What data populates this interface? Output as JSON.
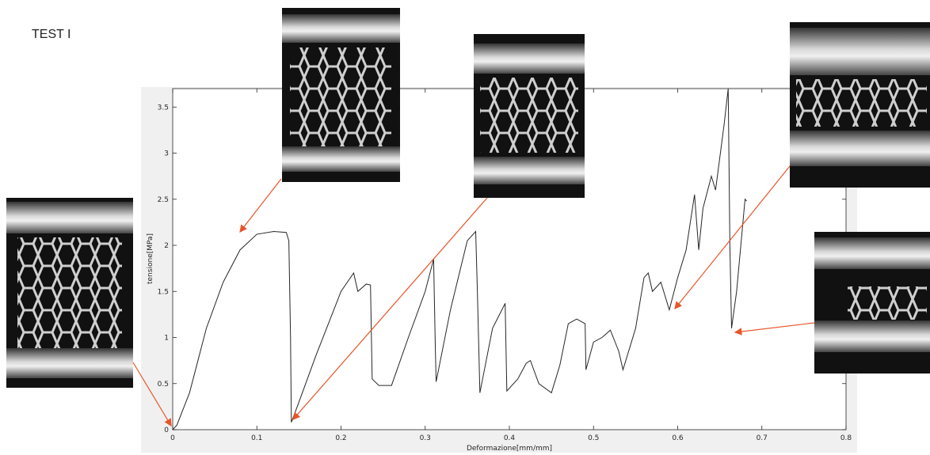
{
  "chart_data": {
    "type": "line",
    "title": "TEST I",
    "x_label": "Deformazione[mm/mm]",
    "y_label": "tensione[MPa]",
    "x": [
      0,
      0.005,
      0.02,
      0.04,
      0.06,
      0.08,
      0.1,
      0.12,
      0.135,
      0.138,
      0.14,
      0.141,
      0.15,
      0.17,
      0.2,
      0.215,
      0.22,
      0.23,
      0.235,
      0.237,
      0.245,
      0.26,
      0.28,
      0.3,
      0.31,
      0.312,
      0.313,
      0.33,
      0.35,
      0.36,
      0.362,
      0.365,
      0.38,
      0.395,
      0.397,
      0.41,
      0.42,
      0.425,
      0.435,
      0.45,
      0.46,
      0.47,
      0.48,
      0.49,
      0.491,
      0.5,
      0.51,
      0.52,
      0.53,
      0.535,
      0.55,
      0.56,
      0.565,
      0.57,
      0.58,
      0.59,
      0.6,
      0.61,
      0.62,
      0.625,
      0.63,
      0.64,
      0.645,
      0.655,
      0.66,
      0.662,
      0.664,
      0.67,
      0.68,
      0.682
    ],
    "values": [
      0,
      0.05,
      0.4,
      1.1,
      1.6,
      1.95,
      2.12,
      2.15,
      2.14,
      2.05,
      1.0,
      0.08,
      0.3,
      0.8,
      1.5,
      1.7,
      1.5,
      1.58,
      1.57,
      0.55,
      0.48,
      0.48,
      1.0,
      1.5,
      1.85,
      0.9,
      0.52,
      1.3,
      2.05,
      2.15,
      1.5,
      0.4,
      1.1,
      1.37,
      0.42,
      0.55,
      0.72,
      0.75,
      0.5,
      0.4,
      0.7,
      1.15,
      1.2,
      1.15,
      0.65,
      0.95,
      1.0,
      1.08,
      0.85,
      0.65,
      1.1,
      1.65,
      1.7,
      1.5,
      1.6,
      1.3,
      1.65,
      1.95,
      2.55,
      1.95,
      2.4,
      2.75,
      2.6,
      3.3,
      3.7,
      2.0,
      1.1,
      1.5,
      2.5,
      2.48
    ],
    "color": "#262626",
    "xlim": [
      0,
      0.8
    ],
    "xticks": [
      0,
      0.1,
      0.2,
      0.3,
      0.4,
      0.5,
      0.6,
      0.7,
      0.8
    ],
    "ylim": [
      0,
      3.7
    ],
    "yticks": [
      0,
      0.5,
      1,
      1.5,
      2,
      2.5,
      3,
      3.5
    ]
  }
}
